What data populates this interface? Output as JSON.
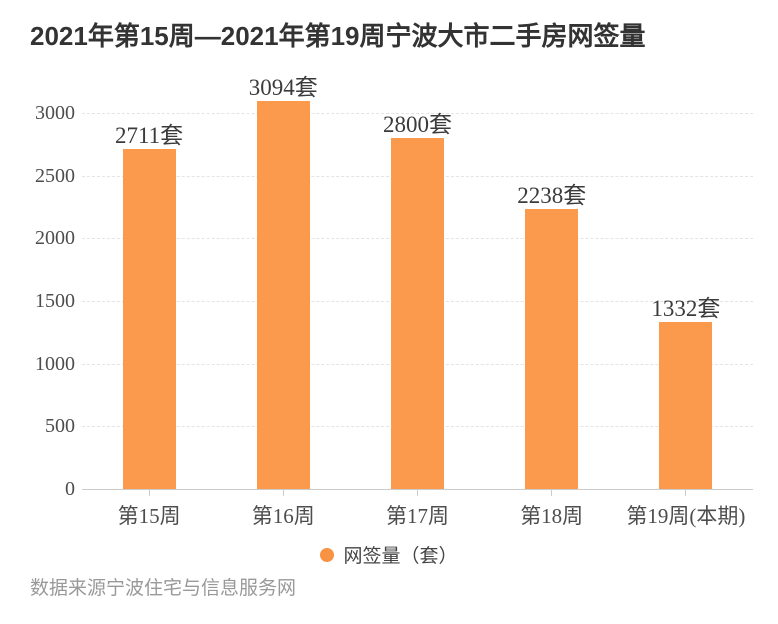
{
  "page": {
    "title": "2021年第15周—2021年第19周宁波大市二手房网签量",
    "source_note": "数据来源宁波住宅与信息服务网"
  },
  "legend": {
    "label": "网签量（套）",
    "marker": "circle-icon",
    "color": "#f89344"
  },
  "chart_data": {
    "type": "bar",
    "title": "2021年第15周—2021年第19周宁波大市二手房网签量",
    "series_name": "网签量（套）",
    "categories": [
      "第15周",
      "第16周",
      "第17周",
      "第18周",
      "第19周(本期)"
    ],
    "values": [
      2711,
      3094,
      2800,
      2238,
      1332
    ],
    "value_labels": [
      "2711套",
      "3094套",
      "2800套",
      "2238套",
      "1332套"
    ],
    "unit": "套",
    "yticks": [
      0,
      500,
      1000,
      1500,
      2000,
      2500,
      3000
    ],
    "ylim": [
      0,
      3250
    ],
    "grid": "dashed horizontal gridlines",
    "legend_position": "bottom",
    "bar_color": "#fb9a4d",
    "source": "数据来源宁波住宅与信息服务网"
  }
}
